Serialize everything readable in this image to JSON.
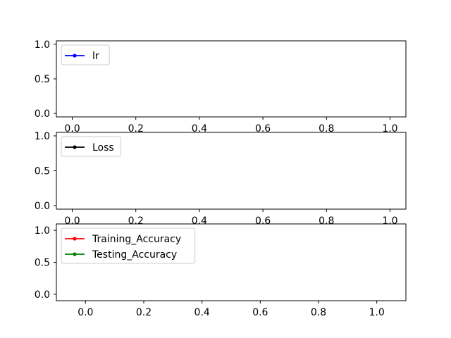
{
  "chart_data": [
    {
      "type": "line",
      "xlim": [
        -0.05,
        1.05
      ],
      "ylim": [
        -0.05,
        1.05
      ],
      "xticks": [
        0.0,
        0.2,
        0.4,
        0.6,
        0.8,
        1.0
      ],
      "yticks": [
        0.0,
        0.5,
        1.0
      ],
      "xtick_labels": [
        "0.0",
        "0.2",
        "0.4",
        "0.6",
        "0.8",
        "1.0"
      ],
      "ytick_labels": [
        "0.0",
        "0.5",
        "1.0"
      ],
      "grid": false,
      "legend_position": "upper-left",
      "series": [
        {
          "name": "lr",
          "color": "#0000ff",
          "marker": "dot",
          "values": []
        }
      ]
    },
    {
      "type": "line",
      "xlim": [
        -0.05,
        1.05
      ],
      "ylim": [
        -0.05,
        1.05
      ],
      "xticks": [
        0.0,
        0.2,
        0.4,
        0.6,
        0.8,
        1.0
      ],
      "yticks": [
        0.0,
        0.5,
        1.0
      ],
      "xtick_labels": [
        "0.0",
        "0.2",
        "0.4",
        "0.6",
        "0.8",
        "1.0"
      ],
      "ytick_labels": [
        "0.0",
        "0.5",
        "1.0"
      ],
      "grid": false,
      "legend_position": "upper-left",
      "series": [
        {
          "name": "Loss",
          "color": "#000000",
          "marker": "dot",
          "values": []
        }
      ]
    },
    {
      "type": "line",
      "xlim": [
        -0.1,
        1.1
      ],
      "ylim": [
        -0.1,
        1.1
      ],
      "xticks": [
        0.0,
        0.2,
        0.4,
        0.6,
        0.8,
        1.0
      ],
      "yticks": [
        0.0,
        0.5,
        1.0
      ],
      "xtick_labels": [
        "0.0",
        "0.2",
        "0.4",
        "0.6",
        "0.8",
        "1.0"
      ],
      "ytick_labels": [
        "0.0",
        "0.5",
        "1.0"
      ],
      "grid": false,
      "legend_position": "upper-left",
      "series": [
        {
          "name": "Training_Accuracy",
          "color": "#ff0000",
          "marker": "dot",
          "values": []
        },
        {
          "name": "Testing_Accuracy",
          "color": "#008000",
          "marker": "dot",
          "values": []
        }
      ]
    }
  ]
}
